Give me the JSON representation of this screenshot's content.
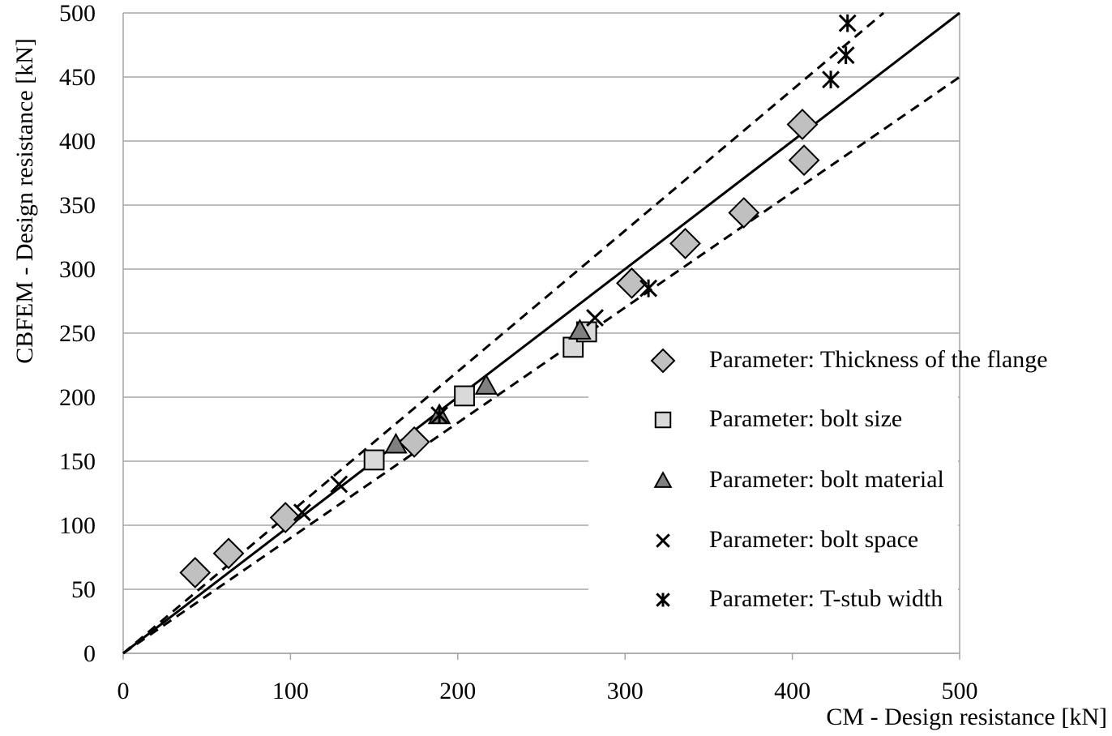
{
  "chart_data": {
    "type": "scatter",
    "xlabel": "CM - Design resistance [kN]",
    "ylabel": "CBFEM - Design resistance [kN]",
    "xlim": [
      0,
      500
    ],
    "ylim": [
      0,
      500
    ],
    "xticks": [
      0,
      100,
      200,
      300,
      400,
      500
    ],
    "yticks": [
      0,
      50,
      100,
      150,
      200,
      250,
      300,
      350,
      400,
      450,
      500
    ],
    "grid": true,
    "reference_lines": [
      {
        "x": [
          0,
          500
        ],
        "y": [
          0,
          500
        ],
        "dashed": false
      },
      {
        "x": [
          0,
          454.5
        ],
        "y": [
          0,
          500
        ],
        "dashed": true
      },
      {
        "x": [
          0,
          500
        ],
        "y": [
          0,
          450
        ],
        "dashed": true
      }
    ],
    "series": [
      {
        "name": "Parameter: Thickness of the flange",
        "marker": "diamond",
        "color": "#c0c0c0",
        "x": [
          43,
          63,
          97,
          174,
          304,
          336,
          371,
          406,
          407
        ],
        "values": [
          63,
          78,
          106,
          165,
          289,
          320,
          344,
          413,
          385
        ]
      },
      {
        "name": "Parameter: bolt size",
        "marker": "square",
        "color": "#d9d9d9",
        "x": [
          150,
          204,
          269,
          277
        ],
        "values": [
          151,
          201,
          239,
          251
        ]
      },
      {
        "name": "Parameter: bolt material",
        "marker": "triangle",
        "color": "#808080",
        "x": [
          163,
          189,
          217,
          273
        ],
        "values": [
          163,
          186,
          209,
          252
        ]
      },
      {
        "name": "Parameter: bolt space",
        "marker": "x",
        "color": "#000000",
        "x": [
          107,
          129,
          282
        ],
        "values": [
          110,
          132,
          262
        ]
      },
      {
        "name": "Parameter: T-stub width",
        "marker": "star",
        "color": "#000000",
        "x": [
          189,
          314,
          423,
          432,
          433
        ],
        "values": [
          186,
          285,
          448,
          467,
          492
        ]
      }
    ]
  }
}
